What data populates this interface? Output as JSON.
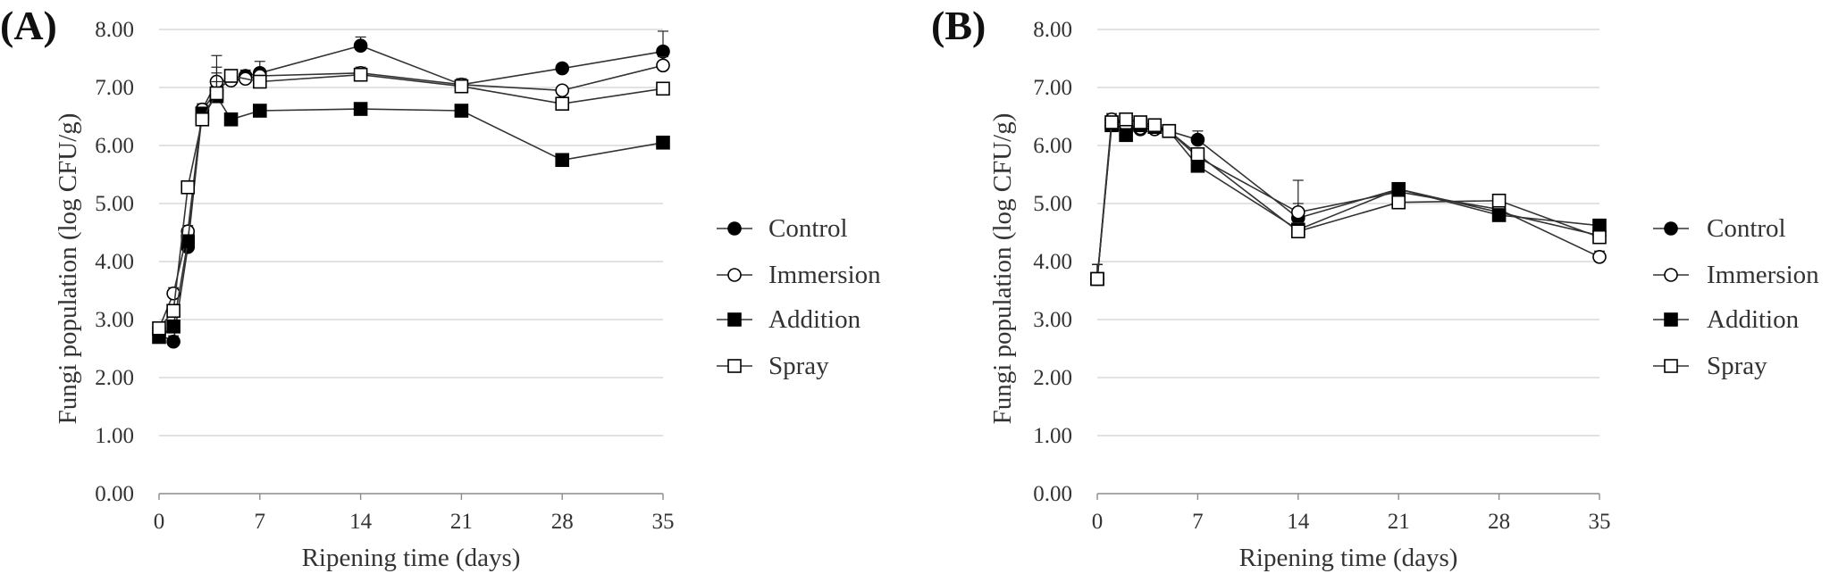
{
  "chart_data": [
    {
      "panel_label": "(A)",
      "type": "line",
      "xlabel": "Ripening time (days)",
      "ylabel": "Fungi population  (log CFU/g)",
      "xlim": [
        0,
        35
      ],
      "ylim": [
        0,
        8
      ],
      "x_ticks": [
        0,
        7,
        14,
        21,
        28,
        35
      ],
      "x_tick_labels": [
        "0",
        "7",
        "14",
        "21",
        "28",
        "35"
      ],
      "y_ticks": [
        0,
        1,
        2,
        3,
        4,
        5,
        6,
        7,
        8
      ],
      "y_tick_labels": [
        "0.00",
        "1.00",
        "2.00",
        "3.00",
        "4.00",
        "5.00",
        "6.00",
        "7.00",
        "8.00"
      ],
      "grid": "horizontal",
      "legend": "right",
      "series": [
        {
          "name": "Control",
          "marker": "filled-circle",
          "x": [
            0,
            1,
            2,
            3,
            4,
            5,
            6,
            7,
            14,
            21,
            28,
            35
          ],
          "y": [
            2.75,
            2.62,
            4.25,
            6.6,
            6.95,
            7.15,
            7.2,
            7.25,
            7.72,
            7.05,
            7.33,
            7.62
          ],
          "err": [
            0.05,
            0.1,
            0.1,
            0.1,
            0.3,
            0.1,
            0.1,
            0.2,
            0.15,
            0.1,
            0.05,
            0.35
          ]
        },
        {
          "name": "Immersion",
          "marker": "open-circle",
          "x": [
            0,
            1,
            2,
            3,
            4,
            5,
            6,
            7,
            14,
            21,
            28,
            35
          ],
          "y": [
            2.85,
            3.45,
            4.52,
            6.62,
            7.1,
            7.12,
            7.15,
            7.2,
            7.25,
            7.05,
            6.95,
            7.38
          ],
          "err": [
            0.05,
            0.1,
            0.1,
            0.1,
            0.25,
            0.1,
            0.1,
            0.1,
            0.1,
            0.1,
            0.05,
            0.15
          ]
        },
        {
          "name": "Addition",
          "marker": "filled-square",
          "x": [
            0,
            1,
            2,
            3,
            4,
            5,
            7,
            14,
            21,
            28,
            35
          ],
          "y": [
            2.7,
            2.88,
            4.35,
            6.55,
            6.85,
            6.45,
            6.6,
            6.63,
            6.6,
            5.75,
            6.05
          ],
          "err": [
            0.05,
            0.05,
            0.1,
            0.1,
            0.7,
            0.05,
            0.05,
            0.05,
            0.05,
            0.05,
            0.05
          ]
        },
        {
          "name": "Spray",
          "marker": "open-square",
          "x": [
            0,
            1,
            2,
            3,
            4,
            5,
            7,
            14,
            21,
            28,
            35
          ],
          "y": [
            2.85,
            3.15,
            5.28,
            6.45,
            6.9,
            7.2,
            7.1,
            7.22,
            7.02,
            6.72,
            6.98
          ],
          "err": [
            0.05,
            0.05,
            0.1,
            0.1,
            0.2,
            0.1,
            0.05,
            0.05,
            0.05,
            0.05,
            0.05
          ]
        }
      ]
    },
    {
      "panel_label": "(B)",
      "type": "line",
      "xlabel": "Ripening time (days)",
      "ylabel": "Fungi population  (log CFU/g)",
      "xlim": [
        0,
        35
      ],
      "ylim": [
        0,
        8
      ],
      "x_ticks": [
        0,
        7,
        14,
        21,
        28,
        35
      ],
      "x_tick_labels": [
        "0",
        "7",
        "14",
        "21",
        "28",
        "35"
      ],
      "y_ticks": [
        0,
        1,
        2,
        3,
        4,
        5,
        6,
        7,
        8
      ],
      "y_tick_labels": [
        "0.00",
        "1.00",
        "2.00",
        "3.00",
        "4.00",
        "5.00",
        "6.00",
        "7.00",
        "8.00"
      ],
      "grid": "horizontal",
      "legend": "right",
      "series": [
        {
          "name": "Control",
          "marker": "filled-circle",
          "x": [
            0,
            1,
            2,
            3,
            4,
            5,
            7,
            14,
            21,
            28,
            35
          ],
          "y": [
            3.7,
            6.35,
            6.3,
            6.28,
            6.3,
            6.25,
            6.1,
            4.75,
            5.25,
            4.85,
            4.45
          ],
          "err": [
            0.25,
            0.1,
            0.1,
            0.1,
            0.1,
            0.1,
            0.15,
            0.65,
            0.1,
            0.1,
            0.05
          ]
        },
        {
          "name": "Immersion",
          "marker": "open-circle",
          "x": [
            0,
            1,
            2,
            3,
            4,
            5,
            7,
            14,
            21,
            28,
            35
          ],
          "y": [
            3.7,
            6.45,
            6.35,
            6.3,
            6.28,
            6.25,
            5.8,
            4.85,
            5.2,
            4.9,
            4.08
          ],
          "err": [
            0.25,
            0.1,
            0.1,
            0.1,
            0.1,
            0.1,
            0.15,
            0.15,
            0.1,
            0.1,
            0.1
          ]
        },
        {
          "name": "Addition",
          "marker": "filled-square",
          "x": [
            0,
            1,
            2,
            3,
            4,
            5,
            7,
            14,
            21,
            28,
            35
          ],
          "y": [
            3.7,
            6.35,
            6.18,
            6.35,
            6.32,
            6.25,
            5.65,
            4.55,
            5.25,
            4.8,
            4.62
          ],
          "err": [
            0.25,
            0.1,
            0.1,
            0.1,
            0.1,
            0.1,
            0.1,
            0.1,
            0.05,
            0.05,
            0.05
          ]
        },
        {
          "name": "Spray",
          "marker": "open-square",
          "x": [
            0,
            1,
            2,
            3,
            4,
            5,
            7,
            14,
            21,
            28,
            35
          ],
          "y": [
            3.7,
            6.4,
            6.45,
            6.4,
            6.35,
            6.25,
            5.85,
            4.52,
            5.02,
            5.05,
            4.42
          ],
          "err": [
            0.25,
            0.1,
            0.1,
            0.1,
            0.1,
            0.1,
            0.1,
            0.15,
            0.05,
            0.05,
            0.05
          ]
        }
      ]
    }
  ]
}
